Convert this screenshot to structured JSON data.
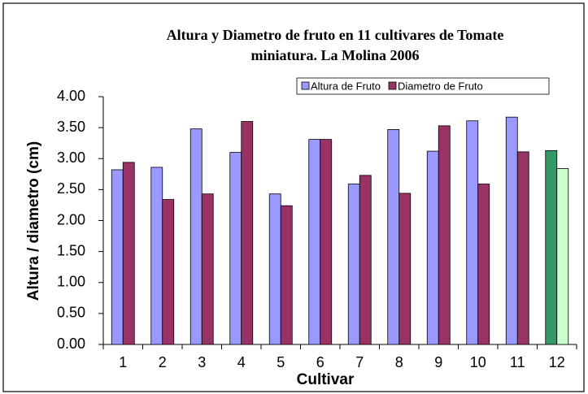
{
  "chart_data": {
    "type": "bar",
    "title": [
      "Altura y Diametro de fruto en 11 cultivares de Tomate",
      "miniatura. La Molina 2006"
    ],
    "x_label": "Cultivar",
    "y_label": "Altura / diametro (cm)",
    "categories": [
      "1",
      "2",
      "3",
      "4",
      "5",
      "6",
      "7",
      "8",
      "9",
      "10",
      "11",
      "12"
    ],
    "series": [
      {
        "name": "Altura de Fruto",
        "color": "#9999ff",
        "colors": [
          "#9999ff",
          "#9999ff",
          "#9999ff",
          "#9999ff",
          "#9999ff",
          "#9999ff",
          "#9999ff",
          "#9999ff",
          "#9999ff",
          "#9999ff",
          "#9999ff",
          "#339966"
        ],
        "values": [
          2.82,
          2.86,
          3.48,
          3.1,
          2.43,
          3.31,
          2.59,
          3.47,
          3.12,
          3.61,
          3.67,
          3.13
        ]
      },
      {
        "name": "Diametro de Fruto",
        "color": "#993366",
        "colors": [
          "#993366",
          "#993366",
          "#993366",
          "#993366",
          "#993366",
          "#993366",
          "#993366",
          "#993366",
          "#993366",
          "#993366",
          "#993366",
          "#ccffcc"
        ],
        "values": [
          2.94,
          2.34,
          2.43,
          3.6,
          2.24,
          3.31,
          2.73,
          2.44,
          3.53,
          2.59,
          3.11,
          2.84
        ]
      }
    ],
    "ylim": [
      0,
      4
    ],
    "yticks": [
      {
        "value": 0,
        "label": "0.00"
      },
      {
        "value": 0.5,
        "label": "0.50"
      },
      {
        "value": 1,
        "label": "1.00"
      },
      {
        "value": 1.5,
        "label": "1.50"
      },
      {
        "value": 2,
        "label": "2.00"
      },
      {
        "value": 2.5,
        "label": "2.50"
      },
      {
        "value": 3,
        "label": "3.00"
      },
      {
        "value": 3.5,
        "label": "3.50"
      },
      {
        "value": 4,
        "label": "4.00"
      }
    ],
    "grid": false,
    "legend": "top-right"
  }
}
